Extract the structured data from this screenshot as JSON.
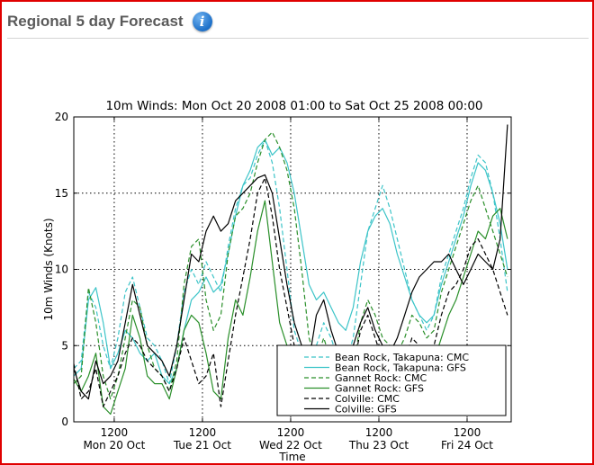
{
  "header": {
    "title": "Regional 5 day Forecast",
    "info_icon": "info-icon"
  },
  "colors": {
    "frame_border": "#e00000",
    "cyan": "#3cc4c8",
    "green": "#2a8f2a",
    "black": "#000000"
  },
  "chart_data": {
    "type": "line",
    "title": "10m Winds: Mon Oct 20 2008 01:00 to Sat Oct 25 2008 00:00",
    "xlabel": "Time",
    "ylabel": "10m Winds (Knots)",
    "xlim": [
      1,
      120
    ],
    "ylim": [
      0,
      20
    ],
    "grid": true,
    "x_unit": "hours from Mon Oct 20 2008 00:00",
    "xticks": [
      12,
      36,
      60,
      84,
      108
    ],
    "xtick_labels": [
      "1200",
      "1200",
      "1200",
      "1200",
      "1200"
    ],
    "day_labels": [
      {
        "x": 12,
        "label": "Mon 20 Oct"
      },
      {
        "x": 36,
        "label": "Tue 21 Oct"
      },
      {
        "x": 60,
        "label": "Wed 22 Oct"
      },
      {
        "x": 84,
        "label": "Thu 23 Oct"
      },
      {
        "x": 108,
        "label": "Fri 24 Oct"
      }
    ],
    "yticks": [
      0,
      5,
      10,
      15,
      20
    ],
    "ytick_labels": [
      "0",
      "5",
      "10 Winds (Knots)",
      "15",
      "20"
    ],
    "legend_position": "lower-right",
    "series": [
      {
        "name": "Bean Rock, Takapuna: CMC",
        "color": "#3cc4c8",
        "dash": true,
        "x": [
          1,
          3,
          5,
          7,
          9,
          11,
          13,
          15,
          17,
          19,
          21,
          23,
          25,
          27,
          29,
          31,
          33,
          35,
          37,
          39,
          41,
          43,
          45,
          47,
          49,
          51,
          53,
          55,
          57,
          59,
          61,
          63,
          65,
          67,
          69,
          71,
          73,
          75,
          77,
          79,
          81,
          83,
          85,
          87,
          89,
          91,
          93,
          95,
          97,
          99,
          101,
          103,
          105,
          107,
          109,
          111,
          113,
          115,
          117,
          119
        ],
        "y": [
          3.5,
          4.0,
          8.5,
          7.5,
          5.0,
          3.5,
          5.5,
          8.5,
          9.5,
          7.5,
          5.5,
          5.0,
          4.0,
          2.5,
          5.0,
          8.5,
          10.0,
          9.0,
          10.5,
          9.5,
          8.5,
          11.5,
          14.0,
          15.5,
          16.0,
          17.5,
          18.5,
          17.0,
          14.0,
          10.0,
          6.0,
          4.5,
          3.5,
          5.0,
          6.5,
          5.5,
          4.0,
          3.8,
          5.5,
          9.0,
          12.5,
          14.0,
          15.5,
          14.0,
          12.0,
          10.0,
          8.0,
          7.0,
          6.0,
          7.0,
          9.5,
          11.0,
          12.5,
          14.0,
          16.0,
          17.5,
          17.0,
          15.0,
          12.0,
          8.5
        ]
      },
      {
        "name": "Bean Rock, Takapuna: GFS",
        "color": "#3cc4c8",
        "dash": false,
        "x": [
          1,
          3,
          5,
          7,
          9,
          11,
          13,
          15,
          17,
          19,
          21,
          23,
          25,
          27,
          29,
          31,
          33,
          35,
          37,
          39,
          41,
          43,
          45,
          47,
          49,
          51,
          53,
          55,
          57,
          59,
          61,
          63,
          65,
          67,
          69,
          71,
          73,
          75,
          77,
          79,
          81,
          83,
          85,
          87,
          89,
          91,
          93,
          95,
          97,
          99,
          101,
          103,
          105,
          107,
          109,
          111,
          113,
          115,
          117,
          119
        ],
        "y": [
          3.0,
          3.5,
          8.0,
          8.8,
          6.5,
          3.5,
          4.5,
          6.0,
          5.5,
          4.5,
          4.0,
          4.5,
          3.0,
          2.5,
          3.5,
          6.0,
          8.0,
          8.5,
          9.5,
          8.5,
          9.0,
          11.0,
          13.5,
          15.5,
          16.5,
          18.0,
          18.5,
          17.5,
          18.0,
          17.0,
          15.0,
          12.0,
          9.0,
          8.0,
          8.5,
          7.5,
          6.5,
          6.0,
          7.5,
          10.5,
          12.5,
          13.5,
          14.0,
          13.0,
          11.0,
          9.5,
          8.0,
          7.0,
          6.5,
          7.0,
          9.0,
          10.5,
          12.0,
          13.5,
          15.5,
          17.0,
          16.5,
          15.0,
          13.0,
          10.0
        ]
      },
      {
        "name": "Gannet Rock: CMC",
        "color": "#2a8f2a",
        "dash": true,
        "x": [
          1,
          3,
          5,
          7,
          9,
          11,
          13,
          15,
          17,
          19,
          21,
          23,
          25,
          27,
          29,
          31,
          33,
          35,
          37,
          39,
          41,
          43,
          45,
          47,
          49,
          51,
          53,
          55,
          57,
          59,
          61,
          63,
          65,
          67,
          69,
          71,
          73,
          75,
          77,
          79,
          81,
          83,
          85,
          87,
          89,
          91,
          93,
          95,
          97,
          99,
          101,
          103,
          105,
          107,
          109,
          111,
          113,
          115,
          117,
          119
        ],
        "y": [
          2.5,
          3.0,
          8.8,
          6.5,
          3.0,
          1.5,
          3.0,
          5.5,
          8.0,
          7.5,
          5.0,
          3.5,
          3.0,
          2.0,
          4.0,
          9.0,
          11.5,
          12.0,
          8.0,
          6.0,
          7.0,
          11.0,
          13.5,
          14.0,
          15.0,
          17.0,
          18.5,
          19.0,
          18.0,
          16.5,
          14.0,
          10.0,
          5.5,
          4.0,
          5.5,
          4.0,
          3.0,
          2.5,
          3.5,
          6.5,
          8.0,
          7.0,
          5.5,
          5.0,
          4.5,
          5.5,
          7.0,
          6.5,
          5.5,
          6.0,
          8.5,
          10.0,
          11.5,
          13.0,
          14.5,
          15.5,
          14.0,
          12.5,
          11.0,
          9.5
        ]
      },
      {
        "name": "Gannet Rock: GFS",
        "color": "#2a8f2a",
        "dash": false,
        "x": [
          1,
          3,
          5,
          7,
          9,
          11,
          13,
          15,
          17,
          19,
          21,
          23,
          25,
          27,
          29,
          31,
          33,
          35,
          37,
          39,
          41,
          43,
          45,
          47,
          49,
          51,
          53,
          55,
          57,
          59,
          61,
          63,
          65,
          67,
          69,
          71,
          73,
          75,
          77,
          79,
          81,
          83,
          85,
          87,
          89,
          91,
          93,
          95,
          97,
          99,
          101,
          103,
          105,
          107,
          109,
          111,
          113,
          115,
          117,
          119
        ],
        "y": [
          2.8,
          2.0,
          3.0,
          4.5,
          1.0,
          0.5,
          2.0,
          3.5,
          7.0,
          5.5,
          3.0,
          2.5,
          2.5,
          1.5,
          3.5,
          6.0,
          7.0,
          6.5,
          4.5,
          2.0,
          1.5,
          5.5,
          8.0,
          7.0,
          9.5,
          12.5,
          14.5,
          10.5,
          6.5,
          5.0,
          3.5,
          2.0,
          2.5,
          3.5,
          3.0,
          2.0,
          1.5,
          1.0,
          2.5,
          4.0,
          5.0,
          4.0,
          3.0,
          3.5,
          3.0,
          4.0,
          5.0,
          4.5,
          3.5,
          4.0,
          5.5,
          7.0,
          8.0,
          9.5,
          11.0,
          12.5,
          12.0,
          13.5,
          14.0,
          12.0
        ]
      },
      {
        "name": "Colville: CMC",
        "color": "#000000",
        "dash": true,
        "x": [
          1,
          3,
          5,
          7,
          9,
          11,
          13,
          15,
          17,
          19,
          21,
          23,
          25,
          27,
          29,
          31,
          33,
          35,
          37,
          39,
          41,
          43,
          45,
          47,
          49,
          51,
          53,
          55,
          57,
          59,
          61,
          63,
          65,
          67,
          69,
          71,
          73,
          75,
          77,
          79,
          81,
          83,
          85,
          87,
          89,
          91,
          93,
          95,
          97,
          99,
          101,
          103,
          105,
          107,
          109,
          111,
          113,
          115,
          117,
          119
        ],
        "y": [
          3.8,
          1.5,
          2.0,
          3.5,
          1.0,
          2.0,
          3.0,
          4.5,
          5.5,
          5.0,
          4.0,
          3.5,
          3.0,
          2.0,
          3.5,
          5.5,
          4.0,
          2.5,
          3.0,
          4.5,
          1.0,
          4.0,
          7.0,
          9.5,
          12.0,
          15.0,
          16.0,
          13.5,
          10.0,
          7.5,
          5.0,
          3.5,
          3.0,
          4.5,
          5.0,
          3.5,
          2.5,
          2.0,
          3.5,
          6.0,
          7.0,
          5.5,
          4.0,
          3.5,
          3.0,
          4.0,
          5.5,
          5.0,
          4.0,
          5.0,
          7.0,
          8.5,
          9.0,
          10.0,
          11.5,
          12.0,
          11.0,
          10.0,
          8.5,
          7.0
        ]
      },
      {
        "name": "Colville: GFS",
        "color": "#000000",
        "dash": false,
        "x": [
          1,
          3,
          5,
          7,
          9,
          11,
          13,
          15,
          17,
          19,
          21,
          23,
          25,
          27,
          29,
          31,
          33,
          35,
          37,
          39,
          41,
          43,
          45,
          47,
          49,
          51,
          53,
          55,
          57,
          59,
          61,
          63,
          65,
          67,
          69,
          71,
          73,
          75,
          77,
          79,
          81,
          83,
          85,
          87,
          89,
          91,
          93,
          95,
          97,
          99,
          101,
          103,
          105,
          107,
          109,
          111,
          113,
          115,
          117,
          119
        ],
        "y": [
          3.5,
          2.0,
          1.5,
          4.0,
          2.5,
          3.0,
          4.0,
          6.5,
          9.0,
          7.0,
          5.0,
          4.5,
          4.0,
          3.0,
          5.0,
          8.0,
          11.0,
          10.5,
          12.5,
          13.5,
          12.5,
          13.0,
          14.5,
          15.0,
          15.5,
          16.0,
          16.2,
          15.0,
          12.0,
          9.0,
          6.5,
          5.0,
          4.0,
          7.0,
          8.0,
          6.0,
          4.5,
          4.0,
          5.0,
          6.5,
          7.5,
          6.0,
          5.0,
          4.5,
          5.5,
          7.0,
          8.5,
          9.5,
          10.0,
          10.5,
          10.5,
          11.0,
          10.0,
          9.0,
          10.0,
          11.0,
          10.5,
          10.0,
          12.0,
          19.5
        ]
      }
    ]
  }
}
